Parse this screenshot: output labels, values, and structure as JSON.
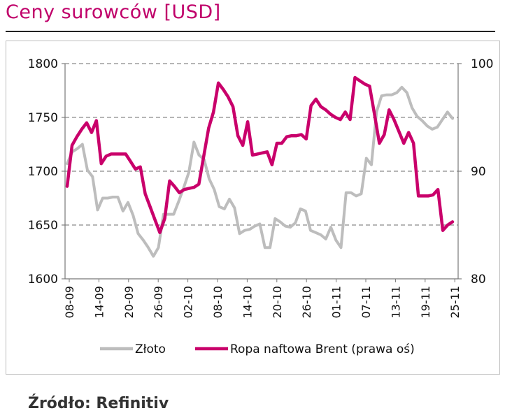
{
  "title": "Ceny surowców [USD]",
  "source": "Źródło: Refinitiv",
  "chart_data": {
    "type": "line",
    "x_ticks": [
      "08-09",
      "14-09",
      "20-09",
      "26-09",
      "02-10",
      "08-10",
      "14-10",
      "20-10",
      "26-10",
      "01-11",
      "07-11",
      "13-11",
      "19-11",
      "25-11"
    ],
    "ylim_left": [
      1600,
      1800
    ],
    "yticks_left": [
      "1600",
      "1650",
      "1700",
      "1750",
      "1800"
    ],
    "ylim_right": [
      80,
      100
    ],
    "yticks_right": [
      "80",
      "90",
      "100"
    ],
    "grid": true,
    "legend_position": "bottom",
    "series": [
      {
        "name": "Złoto",
        "axis": "left",
        "color": "#BDBDBD",
        "values": [
          1707,
          1718,
          1721,
          1725,
          1701,
          1695,
          1664,
          1675,
          1675,
          1676,
          1676,
          1663,
          1671,
          1659,
          1642,
          1636,
          1629,
          1621,
          1629,
          1660,
          1660,
          1660,
          1672,
          1685,
          1699,
          1727,
          1715,
          1711,
          1693,
          1683,
          1667,
          1665,
          1674,
          1666,
          1642,
          1645,
          1646,
          1649,
          1651,
          1629,
          1629,
          1656,
          1653,
          1649,
          1648,
          1652,
          1665,
          1663,
          1645,
          1643,
          1641,
          1637,
          1648,
          1636,
          1629,
          1680,
          1680,
          1677,
          1679,
          1712,
          1706,
          1755,
          1770,
          1771,
          1771,
          1773,
          1778,
          1773,
          1759,
          1751,
          1747,
          1742,
          1739,
          1741,
          1748,
          1755,
          1749
        ]
      },
      {
        "name": "Ropa naftowa Brent (prawa oś)",
        "axis": "right",
        "color": "#C9006B",
        "values": [
          88.6,
          92.4,
          93.2,
          93.9,
          94.5,
          93.6,
          94.7,
          90.7,
          91.4,
          91.6,
          91.6,
          91.6,
          91.6,
          90.9,
          90.2,
          90.4,
          87.9,
          86.7,
          85.5,
          84.3,
          85.6,
          89.1,
          88.6,
          88.0,
          88.3,
          88.4,
          88.5,
          88.8,
          91.4,
          94.0,
          95.5,
          98.2,
          97.6,
          96.9,
          96.0,
          93.3,
          92.4,
          94.6,
          91.5,
          91.6,
          91.7,
          91.8,
          90.6,
          92.6,
          92.6,
          93.2,
          93.3,
          93.3,
          93.4,
          93.0,
          96.1,
          96.7,
          96.0,
          95.7,
          95.3,
          95.0,
          94.8,
          95.5,
          94.8,
          98.7,
          98.4,
          98.1,
          97.9,
          95.3,
          92.6,
          93.4,
          95.7,
          94.8,
          93.7,
          92.6,
          93.6,
          92.6,
          87.7,
          87.7,
          87.7,
          87.8,
          88.3,
          84.5,
          85.0,
          85.3
        ]
      }
    ]
  }
}
